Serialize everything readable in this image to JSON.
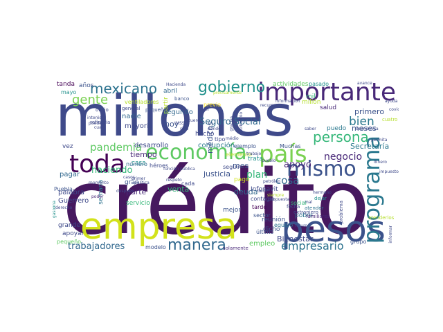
{
  "word_cloud": {
    "words": [
      {
        "text": "crédito",
        "color": "#46185f"
      },
      {
        "text": "millones",
        "color": "#3f4a8a"
      },
      {
        "text": "empresa",
        "color": "#d2e21b"
      },
      {
        "text": "pesos",
        "color": "#3b528b"
      },
      {
        "text": "importante",
        "color": "#482878"
      },
      {
        "text": "programa",
        "color": "#2a788e"
      },
      {
        "text": "toda",
        "color": "#440154"
      },
      {
        "text": "economía",
        "color": "#5ec962"
      },
      {
        "text": "país",
        "color": "#7ad151"
      },
      {
        "text": "mismo",
        "color": "#3b528b"
      },
      {
        "text": "gobierno",
        "color": "#21918c"
      },
      {
        "text": "mexicano",
        "color": "#2c728e"
      },
      {
        "text": "persona",
        "color": "#35b779"
      },
      {
        "text": "manera",
        "color": "#31688e"
      },
      {
        "text": "gente",
        "color": "#7ad151"
      },
      {
        "text": "pandemia",
        "color": "#5ec962"
      },
      {
        "text": "bien",
        "color": "#2a788e"
      },
      {
        "text": "negocio",
        "color": "#482878"
      },
      {
        "text": "empresario",
        "color": "#2c728e"
      },
      {
        "text": "apoyo",
        "color": "#482878"
      },
      {
        "text": "cosa",
        "color": "#31688e"
      },
      {
        "text": "trabajadores",
        "color": "#31688e"
      },
      {
        "text": "haciendo",
        "color": "#35b779"
      },
      {
        "text": "Seguro Social",
        "color": "#31688e"
      },
      {
        "text": "Bienestar",
        "color": "#3e4989"
      },
      {
        "text": "plan",
        "color": "#35b779"
      },
      {
        "text": "mes",
        "color": "#3b528b"
      },
      {
        "text": "hoy",
        "color": "#3b528b"
      },
      {
        "text": "primero",
        "color": "#3b528b"
      },
      {
        "text": "meses",
        "color": "#3b528b"
      },
      {
        "text": "Secretaría",
        "color": "#2a788e"
      },
      {
        "text": "desarrollo",
        "color": "#3e4989"
      },
      {
        "text": "tiempo",
        "color": "#482878"
      },
      {
        "text": "justicia",
        "color": "#3b528b"
      },
      {
        "text": "mayoría",
        "color": "#3e4989"
      },
      {
        "text": "nadie",
        "color": "#31688e"
      },
      {
        "text": "segundo",
        "color": "#31688e"
      },
      {
        "text": "corrupción",
        "color": "#2a788e"
      },
      {
        "text": "médicos",
        "color": "#3b528b"
      },
      {
        "text": "deuda",
        "color": "#31688e"
      },
      {
        "text": "venta",
        "color": "#35b779"
      },
      {
        "text": "parte",
        "color": "#482878"
      },
      {
        "text": "Guerrero",
        "color": "#3e4989"
      },
      {
        "text": "palabra",
        "color": "#3e4989"
      },
      {
        "text": "pagar",
        "color": "#31688e"
      },
      {
        "text": "empleo",
        "color": "#5ec962"
      },
      {
        "text": "reunión",
        "color": "#3b528b"
      },
      {
        "text": "dicho",
        "color": "#3b528b"
      },
      {
        "text": "pago",
        "color": "#d2e21b"
      },
      {
        "text": "Infonavit",
        "color": "#3e4989"
      },
      {
        "text": "casa",
        "color": "#21918c"
      },
      {
        "text": "salud",
        "color": "#482878"
      },
      {
        "text": "puedo",
        "color": "#2a788e"
      },
      {
        "text": "mil",
        "color": "#35b779"
      },
      {
        "text": "millón",
        "color": "#b5de2b"
      },
      {
        "text": "vez",
        "color": "#3e4989"
      },
      {
        "text": "tanda",
        "color": "#440154"
      },
      {
        "text": "años",
        "color": "#3b528b"
      },
      {
        "text": "mayo",
        "color": "#21918c"
      },
      {
        "text": "abril",
        "color": "#31688e"
      },
      {
        "text": "Muchas",
        "color": "#3b528b"
      },
      {
        "text": "ejemplo",
        "color": "#3b528b"
      },
      {
        "text": "gran",
        "color": "#3b528b"
      },
      {
        "text": "grande",
        "color": "#3e4989"
      },
      {
        "text": "apoyar",
        "color": "#3e4989"
      },
      {
        "text": "pequeño",
        "color": "#5ec962"
      },
      {
        "text": "servicio",
        "color": "#35b779"
      },
      {
        "text": "modelo",
        "color": "#3b528b"
      },
      {
        "text": "solamente",
        "color": "#482878"
      },
      {
        "text": "grupo",
        "color": "#3b528b"
      },
      {
        "text": "sector",
        "color": "#3b528b"
      },
      {
        "text": "tarde",
        "color": "#440154"
      },
      {
        "text": "mejor",
        "color": "#3b528b"
      },
      {
        "text": "actividades",
        "color": "#5ec962"
      },
      {
        "text": "pasado",
        "color": "#21918c"
      },
      {
        "text": "contagio",
        "color": "#3e4989"
      },
      {
        "text": "atender",
        "color": "#2c728e"
      },
      {
        "text": "pobre",
        "color": "#2c728e"
      },
      {
        "text": "hecho",
        "color": "#3e4989"
      },
      {
        "text": "dar",
        "color": "#3e4989"
      },
      {
        "text": "tipo",
        "color": "#3e4989"
      },
      {
        "text": "cada",
        "color": "#3e4989"
      },
      {
        "text": "seguir",
        "color": "#3e4989"
      },
      {
        "text": "trata",
        "color": "#21918c"
      },
      {
        "text": "partir",
        "color": "#b5de2b"
      },
      {
        "text": "equipo",
        "color": "#2c728e"
      },
      {
        "text": "último",
        "color": "#3b528b"
      },
      {
        "text": "social",
        "color": "#35b779"
      },
      {
        "text": "dejar",
        "color": "#21918c"
      },
      {
        "text": "semana",
        "color": "#2c728e"
      },
      {
        "text": "problema",
        "color": "#3e4989"
      },
      {
        "text": "atenderlos",
        "color": "#b5de2b"
      },
      {
        "text": "gasolina",
        "color": "#21918c"
      },
      {
        "text": "número",
        "color": "#31688e"
      },
      {
        "text": "héroes",
        "color": "#3e4989"
      },
      {
        "text": "ventiladores",
        "color": "#b5de2b"
      },
      {
        "text": "pequeña",
        "color": "#3b528b"
      },
      {
        "text": "banco",
        "color": "#3b528b"
      },
      {
        "text": "poder",
        "color": "#482878"
      },
      {
        "text": "Puebla",
        "color": "#3b528b"
      },
      {
        "text": "previo",
        "color": "#fde725"
      },
      {
        "text": "elemento",
        "color": "#b5de2b"
      },
      {
        "text": "propuesta",
        "color": "#3e4989"
      },
      {
        "text": "fecha",
        "color": "#3e4989"
      },
      {
        "text": "extranjero",
        "color": "#3e4989"
      },
      {
        "text": "familiares",
        "color": "#482878"
      },
      {
        "text": "refinería",
        "color": "#3e4989"
      },
      {
        "text": "oficio",
        "color": "#3e4989"
      },
      {
        "text": "general",
        "color": "#3e4989"
      },
      {
        "text": "Hacienda",
        "color": "#3e4989"
      },
      {
        "text": "IMSS",
        "color": "#3e4989"
      },
      {
        "text": "acuerdo",
        "color": "#3e4989"
      },
      {
        "text": "saber",
        "color": "#3e4989"
      },
      {
        "text": "covid",
        "color": "#3e4989"
      },
      {
        "text": "respeto",
        "color": "#3e4989"
      },
      {
        "text": "trabajo",
        "color": "#3e4989"
      },
      {
        "text": "después",
        "color": "#3e4989"
      },
      {
        "text": "dando",
        "color": "#3e4989"
      },
      {
        "text": "función pública",
        "color": "#3e4989"
      },
      {
        "text": "pueblo",
        "color": "#3e4989"
      },
      {
        "text": "impuesto",
        "color": "#3e4989"
      },
      {
        "text": "informar",
        "color": "#3e4989"
      },
      {
        "text": "futuro",
        "color": "#3e4989"
      },
      {
        "text": "derecho",
        "color": "#3e4989"
      },
      {
        "text": "casos",
        "color": "#3e4989"
      },
      {
        "text": "siempre",
        "color": "#b5de2b"
      },
      {
        "text": "ayuda",
        "color": "#3e4989"
      },
      {
        "text": "avance",
        "color": "#3e4989"
      },
      {
        "text": "permita",
        "color": "#3e4989"
      },
      {
        "text": "económica",
        "color": "#3e4989"
      },
      {
        "text": "médio",
        "color": "#3e4989"
      },
      {
        "text": "primer",
        "color": "#3e4989"
      },
      {
        "text": "política",
        "color": "#3e4989"
      },
      {
        "text": "recursos",
        "color": "#3e4989"
      },
      {
        "text": "información",
        "color": "#3e4989"
      },
      {
        "text": "sino",
        "color": "#3e4989"
      },
      {
        "text": "hermano",
        "color": "#3e4989"
      },
      {
        "text": "decir",
        "color": "#3e4989"
      },
      {
        "text": "patrimonio",
        "color": "#3e4989"
      },
      {
        "text": "precisamente",
        "color": "#b5de2b"
      },
      {
        "text": "pueden",
        "color": "#3e4989"
      },
      {
        "text": "cual",
        "color": "#3e4989"
      },
      {
        "text": "interés",
        "color": "#3e4989"
      },
      {
        "text": "petróleo",
        "color": "#3e4989"
      },
      {
        "text": "momento",
        "color": "#3e4989"
      },
      {
        "text": "dinero",
        "color": "#3e4989"
      },
      {
        "text": "cuatro",
        "color": "#b5de2b"
      },
      {
        "text": "mal",
        "color": "#3e4989"
      },
      {
        "text": "gracias",
        "color": "#3e4989"
      }
    ]
  }
}
